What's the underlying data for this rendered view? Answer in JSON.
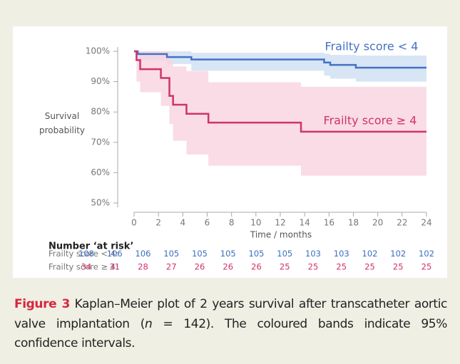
{
  "chart_data": {
    "type": "kaplan-meier",
    "xlabel": "Time / months",
    "ylabel": "Survival probability",
    "xlim": [
      0,
      24
    ],
    "xticks": [
      0,
      2,
      4,
      6,
      8,
      10,
      12,
      14,
      16,
      18,
      20,
      22,
      24
    ],
    "ylim": [
      50,
      100
    ],
    "yticks": [
      {
        "value": 50,
        "label": "50%"
      },
      {
        "value": 60,
        "label": "60%"
      },
      {
        "value": 70,
        "label": "70%"
      },
      {
        "value": 80,
        "label": "80%"
      },
      {
        "value": 90,
        "label": "90%"
      },
      {
        "value": 100,
        "label": "100%"
      }
    ],
    "grid": false,
    "series": [
      {
        "name": "Frailty score < 4",
        "color": "#4472c4",
        "band_color": "#cddff2",
        "x": [
          0,
          0.3,
          2.7,
          4.7,
          15.6,
          16.1,
          18.2
        ],
        "values": [
          100,
          99.1,
          98.1,
          97.3,
          96.3,
          95.5,
          94.6
        ],
        "lower": [
          100,
          97,
          95.8,
          93.6,
          92,
          91,
          90
        ],
        "upper": [
          100,
          100,
          100,
          99.5,
          99.2,
          98.8,
          98.6
        ]
      },
      {
        "name": "Frailty score ≥ 4",
        "color": "#d0336b",
        "band_color": "#f9d3e0",
        "x": [
          0,
          0.2,
          0.5,
          2.2,
          2.9,
          3.2,
          4.3,
          6.1,
          13.7
        ],
        "values": [
          100,
          97.1,
          94.1,
          91.2,
          85.3,
          82.4,
          79.4,
          76.5,
          73.5
        ],
        "lower": [
          100,
          90,
          86.5,
          82,
          76,
          70.5,
          66,
          62.3,
          59
        ],
        "upper": [
          100,
          100,
          100,
          100,
          97,
          95,
          93.5,
          89.8,
          88.3
        ]
      }
    ],
    "at_risk": {
      "title": "Number ‘at risk’",
      "rows": [
        {
          "label": "Frailty score < 4:",
          "color": "#3a6fc0",
          "values": [
            108,
            106,
            106,
            105,
            105,
            105,
            105,
            105,
            103,
            103,
            102,
            102,
            102
          ]
        },
        {
          "label": "Frailty score ≥ 4:",
          "color": "#d0336b",
          "values": [
            34,
            31,
            28,
            27,
            26,
            26,
            26,
            25,
            25,
            25,
            25,
            25,
            25
          ]
        }
      ]
    }
  },
  "caption": {
    "label": "Figure 3",
    "text_before": "Kaplan–Meier plot of 2 years survival after transcatheter aortic valve implantation (",
    "italic": "n",
    "text_after": " = 142). The coloured bands indicate 95% confidence intervals."
  }
}
